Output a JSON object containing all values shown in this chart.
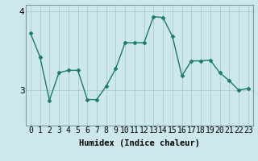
{
  "x": [
    0,
    1,
    2,
    3,
    4,
    5,
    6,
    7,
    8,
    9,
    10,
    11,
    12,
    13,
    14,
    15,
    16,
    17,
    18,
    19,
    20,
    21,
    22,
    23
  ],
  "y": [
    3.72,
    3.42,
    2.87,
    3.22,
    3.25,
    3.25,
    2.88,
    2.88,
    3.05,
    3.27,
    3.6,
    3.6,
    3.6,
    3.93,
    3.92,
    3.68,
    3.18,
    3.37,
    3.37,
    3.38,
    3.22,
    3.12,
    3.0,
    3.02
  ],
  "line_color": "#1a7a6e",
  "marker": "D",
  "marker_size": 2.5,
  "bg_color": "#cce8ec",
  "grid_color": "#aacdd2",
  "ylabel_ticks": [
    3,
    4
  ],
  "ylim": [
    2.55,
    4.08
  ],
  "xlim": [
    -0.5,
    23.5
  ],
  "xlabel": "Humidex (Indice chaleur)",
  "xlabel_fontsize": 7.5,
  "tick_fontsize": 7,
  "spine_color": "#7a9a9c"
}
